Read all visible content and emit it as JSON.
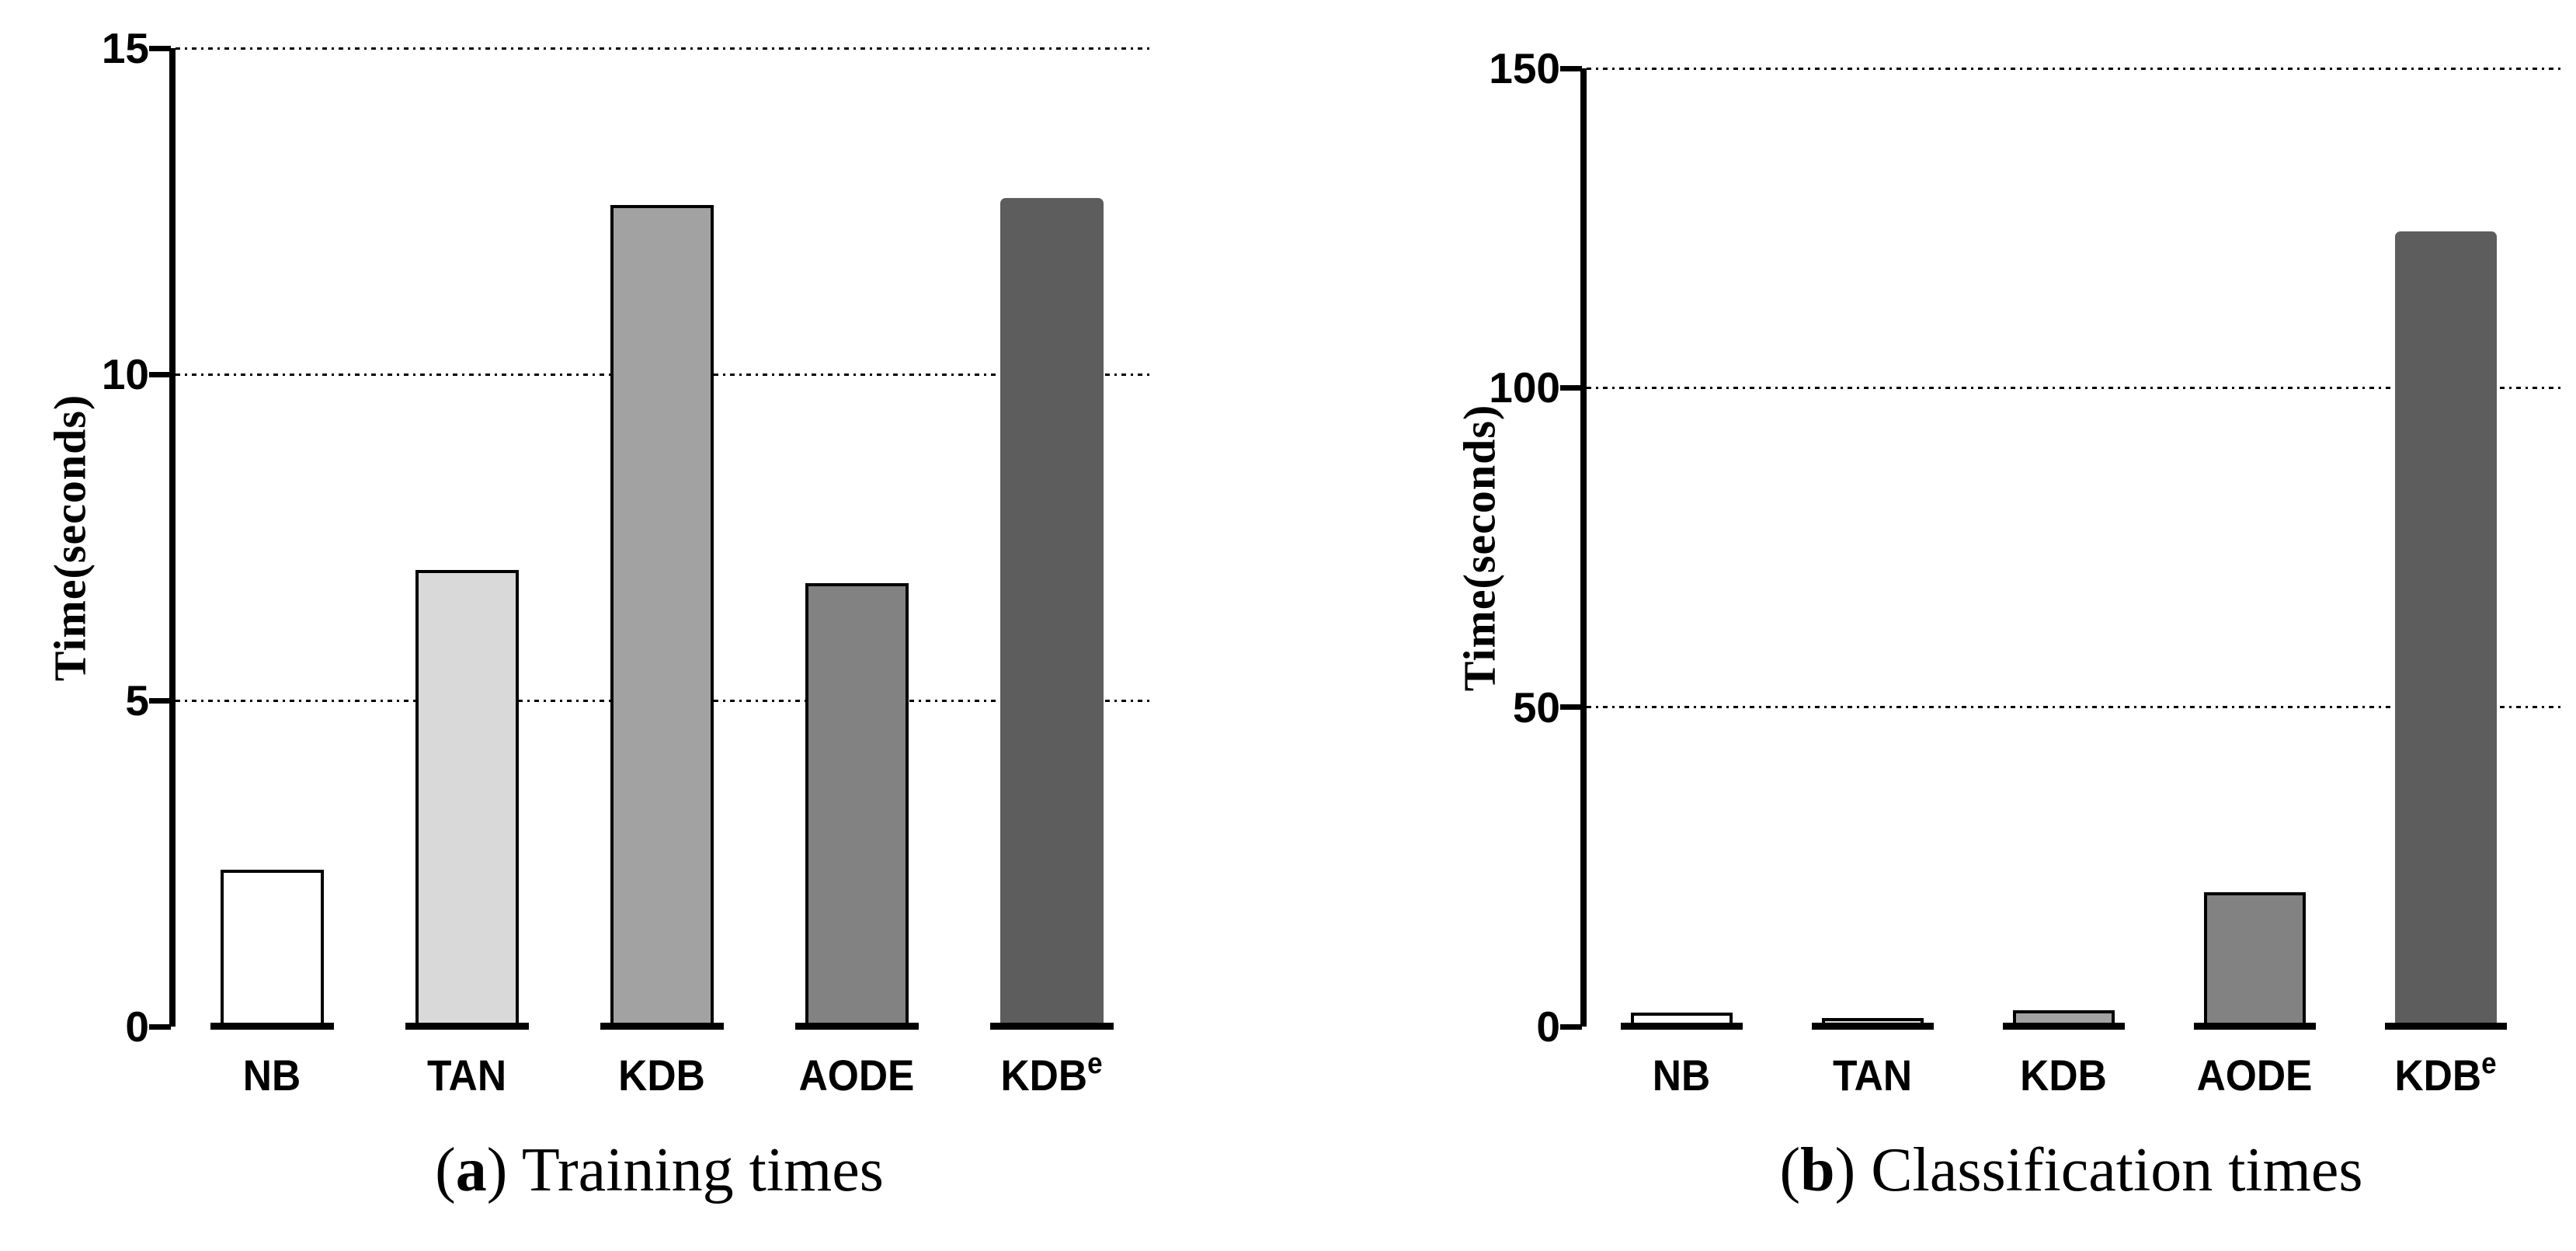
{
  "figure": {
    "captions": [
      {
        "open": "(",
        "letter": "a",
        "rest": ") Training times"
      },
      {
        "open": "(",
        "letter": "b",
        "rest": ") Classification times"
      }
    ]
  },
  "chart_data": [
    {
      "type": "bar",
      "title": "(a) Training times",
      "xlabel": "",
      "ylabel": "Time(seconds)",
      "categories": [
        "NB",
        "TAN",
        "KDB",
        "AODE",
        "KDB^e"
      ],
      "categories_rich": [
        {
          "text": "NB",
          "sup": ""
        },
        {
          "text": "TAN",
          "sup": ""
        },
        {
          "text": "KDB",
          "sup": ""
        },
        {
          "text": "AODE",
          "sup": ""
        },
        {
          "text": "KDB",
          "sup": "e"
        }
      ],
      "values": [
        2.4,
        7.0,
        12.6,
        6.8,
        12.7
      ],
      "ylim": [
        0,
        15
      ],
      "yticks": [
        0,
        5,
        10,
        15
      ],
      "grid": "horizontal-dotted-at-yticks-above-zero",
      "legend": "none",
      "bar_colors": [
        "#ffffff",
        "#d9d9d9",
        "#a2a2a2",
        "#828282",
        "#5d5d5d"
      ],
      "bar_border_colors": [
        "#000000",
        "#000000",
        "#000000",
        "#000000",
        "#5d5d5d"
      ]
    },
    {
      "type": "bar",
      "title": "(b) Classification times",
      "xlabel": "",
      "ylabel": "Time(seconds)",
      "categories": [
        "NB",
        "TAN",
        "KDB",
        "AODE",
        "KDB^e"
      ],
      "categories_rich": [
        {
          "text": "NB",
          "sup": ""
        },
        {
          "text": "TAN",
          "sup": ""
        },
        {
          "text": "KDB",
          "sup": ""
        },
        {
          "text": "AODE",
          "sup": ""
        },
        {
          "text": "KDB",
          "sup": "e"
        }
      ],
      "values": [
        2.2,
        1.3,
        2.5,
        21,
        124.5
      ],
      "ylim": [
        0,
        150
      ],
      "yticks": [
        0,
        50,
        100,
        150
      ],
      "grid": "horizontal-dotted-at-yticks-above-zero",
      "legend": "none",
      "bar_colors": [
        "#ffffff",
        "#d9d9d9",
        "#a2a2a2",
        "#828282",
        "#5d5d5d"
      ],
      "bar_border_colors": [
        "#000000",
        "#000000",
        "#000000",
        "#000000",
        "#5d5d5d"
      ]
    }
  ]
}
